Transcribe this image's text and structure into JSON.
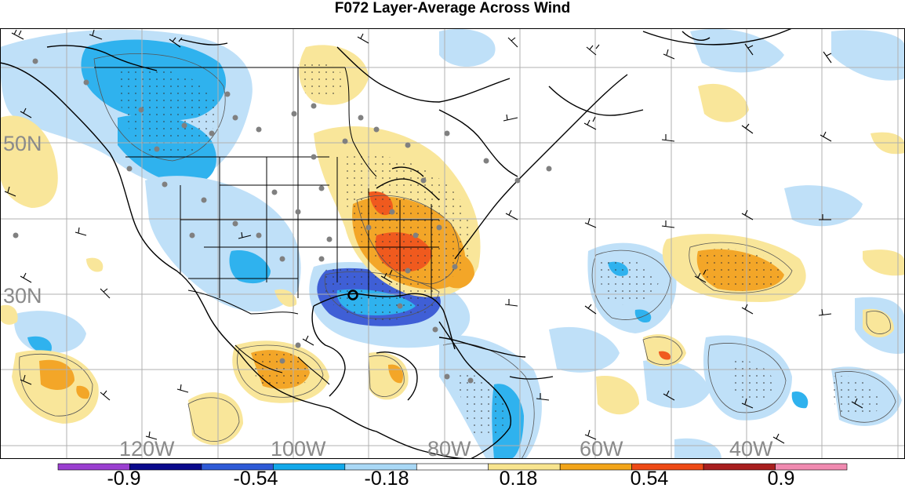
{
  "title": "F072 Layer-Average Across Wind",
  "latitude_labels": [
    "50N",
    "30N"
  ],
  "longitude_labels": [
    "120W",
    "100W",
    "80W",
    "60W",
    "40W"
  ],
  "colorbar": {
    "tick_labels": [
      "-0.9",
      "-0.54",
      "-0.18",
      "0.18",
      "0.54",
      "0.9"
    ],
    "colors": [
      "#9a3fd0",
      "#0a0a8c",
      "#2e5ad6",
      "#12a8ea",
      "#a9d8f6",
      "#ffffff",
      "#f8e48e",
      "#f2a51a",
      "#ee4a16",
      "#a81e1e",
      "#f08ab0"
    ]
  },
  "palette": {
    "neg_light": "#bfe0f8",
    "neg_mid": "#2fb2ee",
    "neg_dark": "#3f5fd6",
    "pos_light": "#f9e69a",
    "pos_mid": "#f3a628",
    "pos_dark": "#f05a1e",
    "coast": "#000000",
    "grid": "#b0b0b0",
    "station": "#808080"
  },
  "features": {
    "map_center_marker": "storm-center"
  }
}
